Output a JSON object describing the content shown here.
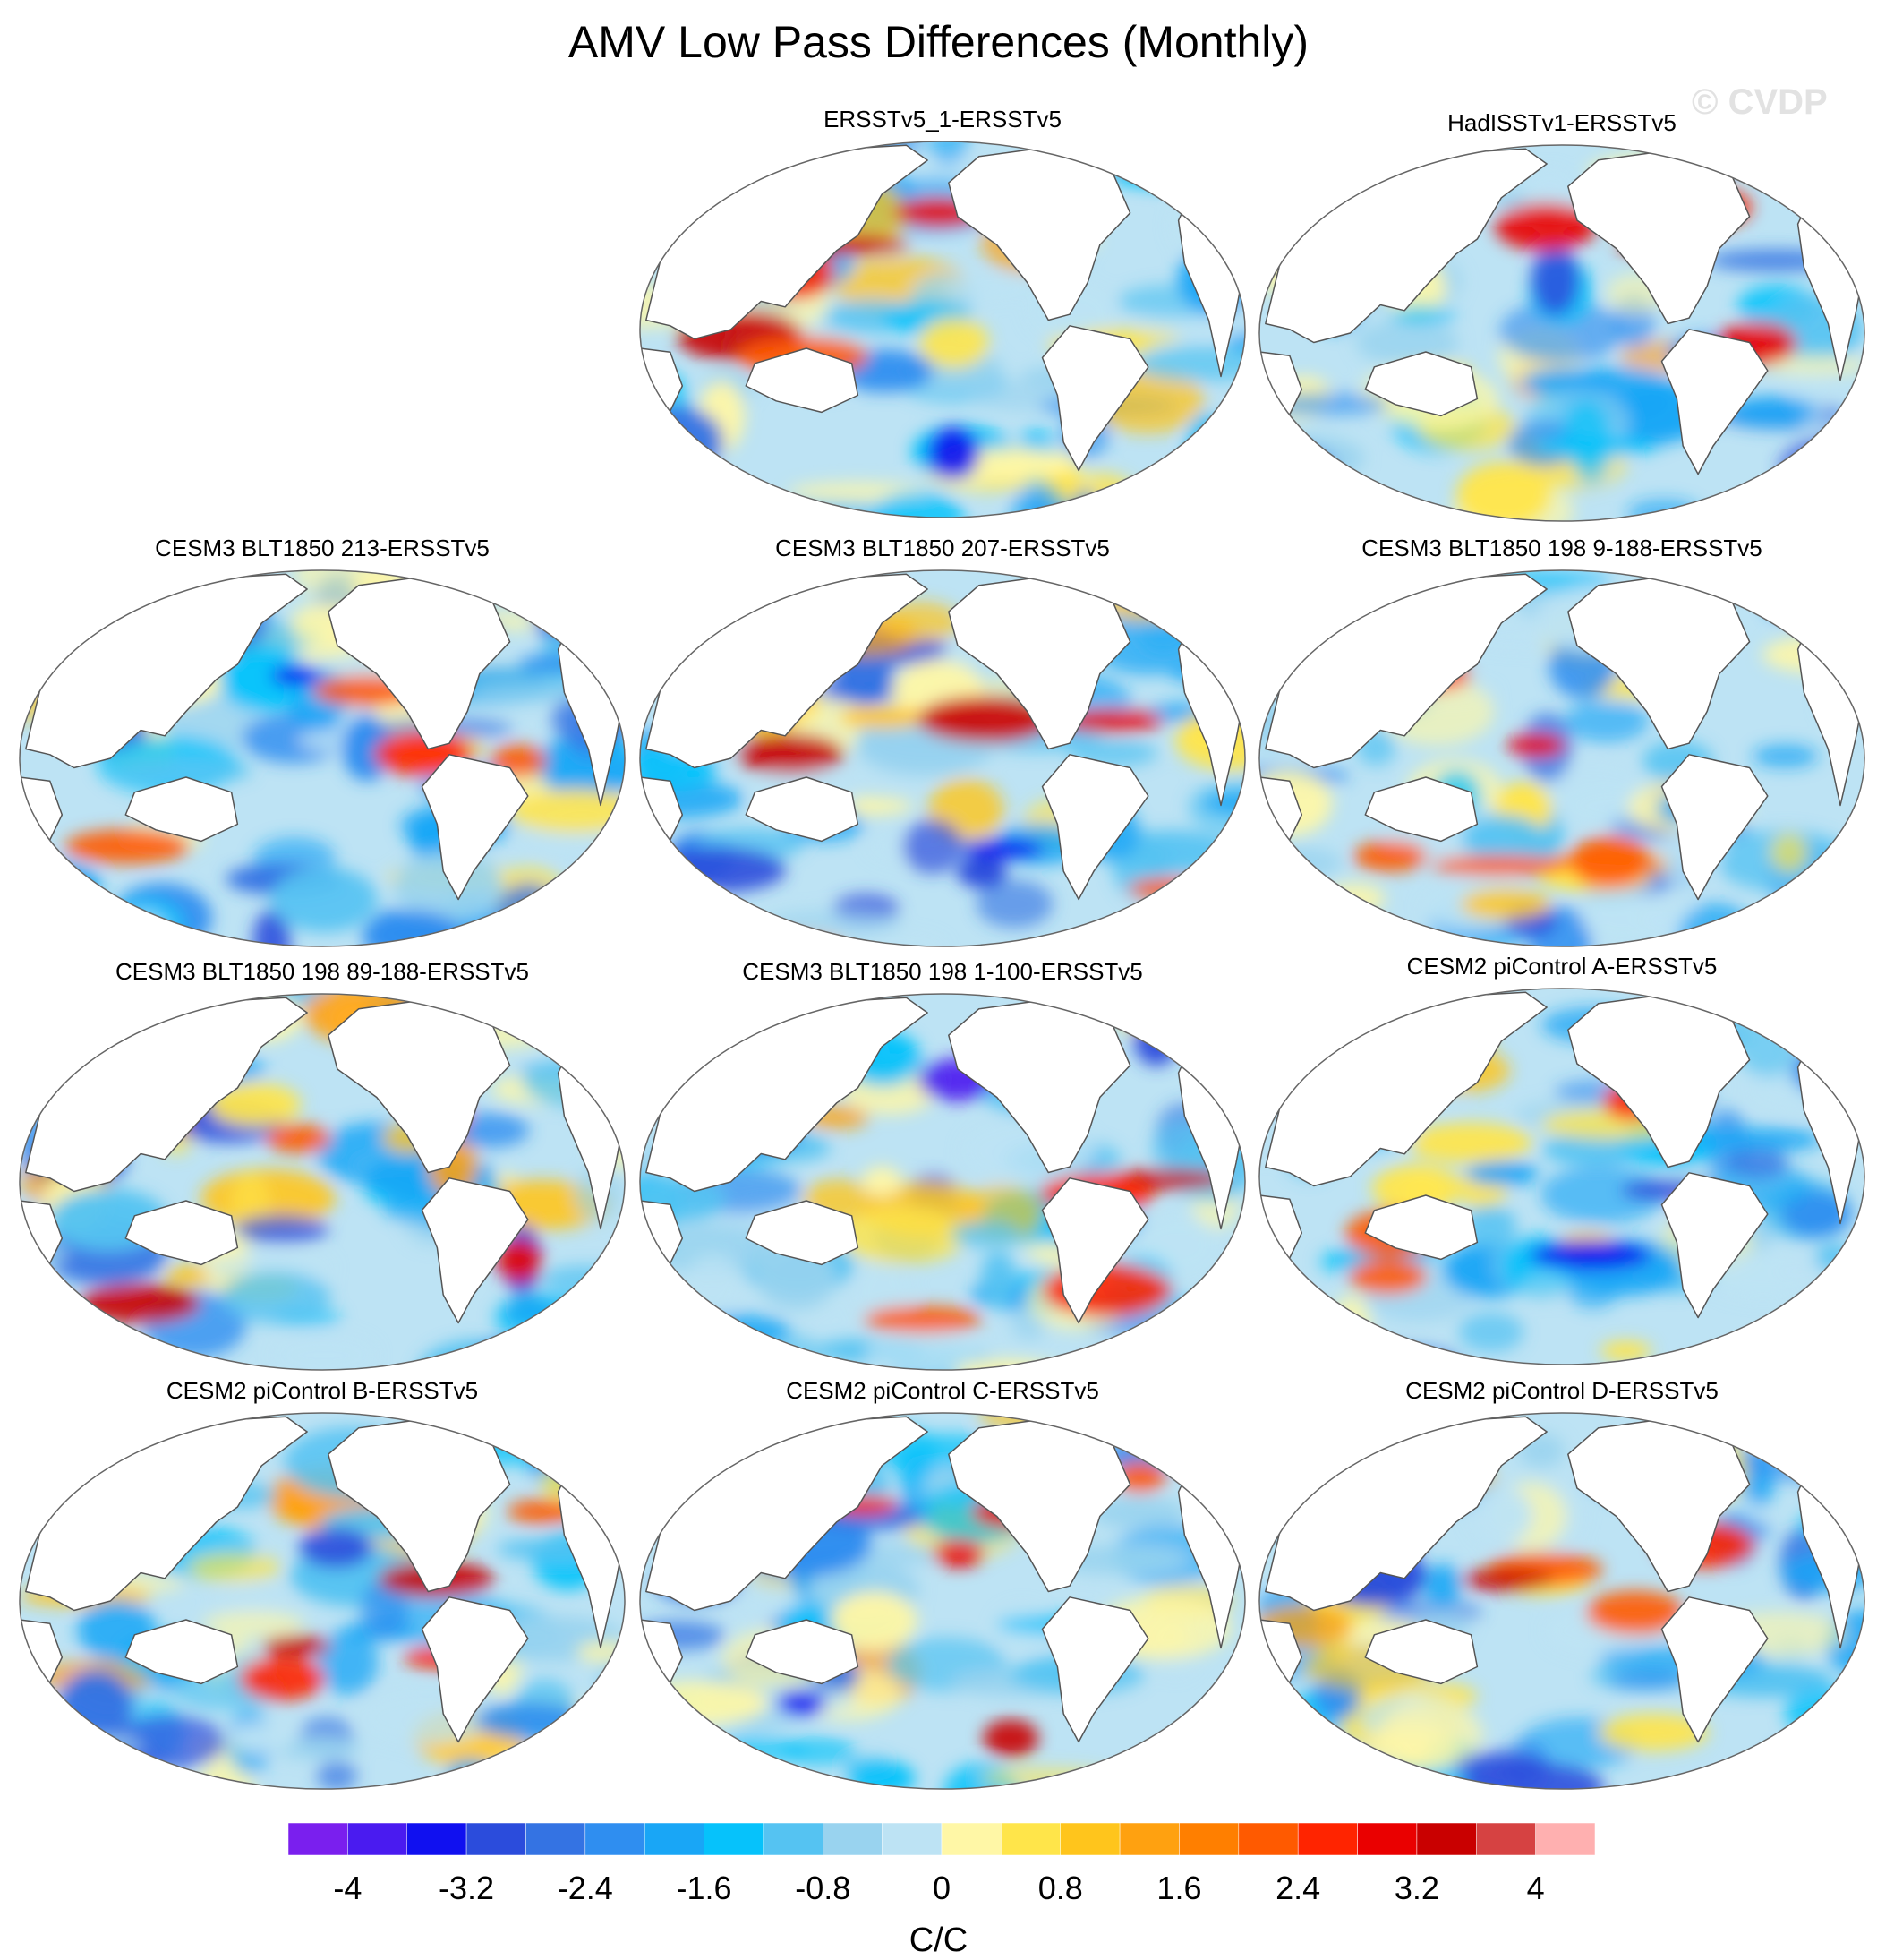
{
  "title": "AMV Low Pass Differences (Monthly)",
  "watermark": "© CVDP",
  "colors": {
    "palette": [
      "#7a1fee",
      "#4a1bf0",
      "#1010f0",
      "#2b4cdc",
      "#3473e3",
      "#2f8ef0",
      "#19a6f6",
      "#06c2fb",
      "#55c3f2",
      "#99d3ef",
      "#bde3f4",
      "#fff7a6",
      "#ffe54a",
      "#ffc51c",
      "#ffa110",
      "#ff7f00",
      "#ff5a00",
      "#ff2400",
      "#ea0000",
      "#c90000",
      "#d64242",
      "#ffb0b0"
    ],
    "land": "#ffffff",
    "coast": "#555555"
  },
  "panels": [
    {
      "title": "ERSSTv5_1-ERSSTv5",
      "seed": 11
    },
    {
      "title": "HadISSTv1-ERSSTv5",
      "seed": 23
    },
    {
      "title": "CESM3 BLT1850 213-ERSSTv5",
      "seed": 37
    },
    {
      "title": "CESM3 BLT1850 207-ERSSTv5",
      "seed": 41
    },
    {
      "title": "CESM3 BLT1850 198 9-188-ERSSTv5",
      "seed": 53
    },
    {
      "title": "CESM3 BLT1850 198 89-188-ERSSTv5",
      "seed": 67
    },
    {
      "title": "CESM3 BLT1850 198 1-100-ERSSTv5",
      "seed": 71
    },
    {
      "title": "CESM2 piControl A-ERSSTv5",
      "seed": 83
    },
    {
      "title": "CESM2 piControl B-ERSSTv5",
      "seed": 97
    },
    {
      "title": "CESM2 piControl C-ERSSTv5",
      "seed": 101
    },
    {
      "title": "CESM2 piControl D-ERSSTv5",
      "seed": 113
    }
  ],
  "colorbar": {
    "labels": [
      "-4",
      "-3.2",
      "-2.4",
      "-1.6",
      "-0.8",
      "0",
      "0.8",
      "1.6",
      "2.4",
      "3.2",
      "4"
    ],
    "unit": "C/C"
  }
}
